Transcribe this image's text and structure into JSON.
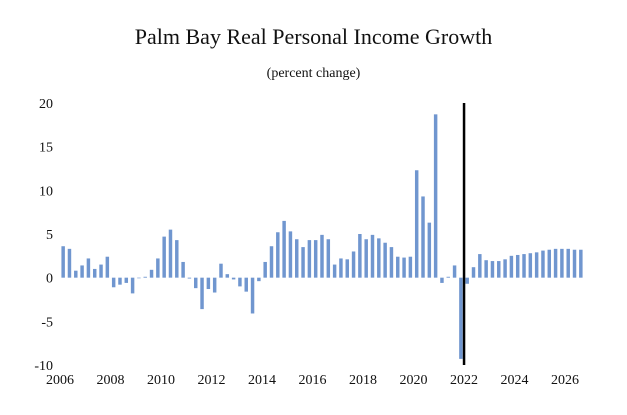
{
  "chart_data": {
    "type": "bar",
    "title": "Palm Bay Real Personal Income Growth",
    "subtitle": "(percent change)",
    "xlabel": "",
    "ylabel": "",
    "ylim": [
      -10,
      20
    ],
    "yticks": [
      -10,
      -5,
      0,
      5,
      10,
      15,
      20
    ],
    "xlim": [
      2006,
      2026.75
    ],
    "xticks": [
      2006,
      2008,
      2010,
      2012,
      2014,
      2016,
      2018,
      2020,
      2022,
      2024,
      2026
    ],
    "vline_at": 2022,
    "bar_color": "#7096cf",
    "vline_color": "#000000",
    "grid": false,
    "x": [
      2006.0,
      2006.25,
      2006.5,
      2006.75,
      2007.0,
      2007.25,
      2007.5,
      2007.75,
      2008.0,
      2008.25,
      2008.5,
      2008.75,
      2009.0,
      2009.25,
      2009.5,
      2009.75,
      2010.0,
      2010.25,
      2010.5,
      2010.75,
      2011.0,
      2011.25,
      2011.5,
      2011.75,
      2012.0,
      2012.25,
      2012.5,
      2012.75,
      2013.0,
      2013.25,
      2013.5,
      2013.75,
      2014.0,
      2014.25,
      2014.5,
      2014.75,
      2015.0,
      2015.25,
      2015.5,
      2015.75,
      2016.0,
      2016.25,
      2016.5,
      2016.75,
      2017.0,
      2017.25,
      2017.5,
      2017.75,
      2018.0,
      2018.25,
      2018.5,
      2018.75,
      2019.0,
      2019.25,
      2019.5,
      2019.75,
      2020.0,
      2020.25,
      2020.5,
      2020.75,
      2021.0,
      2021.25,
      2021.5,
      2021.75,
      2022.0,
      2022.25,
      2022.5,
      2022.75,
      2023.0,
      2023.25,
      2023.5,
      2023.75,
      2024.0,
      2024.25,
      2024.5,
      2024.75,
      2025.0,
      2025.25,
      2025.5,
      2025.75,
      2026.0,
      2026.25,
      2026.5
    ],
    "values": [
      3.6,
      3.3,
      0.8,
      1.4,
      2.2,
      1.0,
      1.5,
      2.4,
      -1.1,
      -0.8,
      -0.6,
      -1.8,
      0.0,
      0.1,
      0.9,
      2.2,
      4.7,
      5.5,
      4.3,
      1.8,
      -0.1,
      -1.2,
      -3.6,
      -1.3,
      -1.7,
      1.6,
      0.4,
      -0.2,
      -1.0,
      -1.6,
      -4.1,
      -0.4,
      1.8,
      3.6,
      5.2,
      6.5,
      5.3,
      4.4,
      3.5,
      4.3,
      4.3,
      4.9,
      4.4,
      1.5,
      2.2,
      2.1,
      3.0,
      5.0,
      4.4,
      4.9,
      4.5,
      4.0,
      3.5,
      2.4,
      2.3,
      2.4,
      12.3,
      9.3,
      6.3,
      18.7,
      -0.6,
      0.1,
      1.4,
      -9.3,
      -0.7,
      1.2,
      2.7,
      2.0,
      1.9,
      1.9,
      2.1,
      2.5,
      2.6,
      2.7,
      2.8,
      2.9,
      3.1,
      3.2,
      3.3,
      3.3,
      3.3,
      3.2,
      3.2
    ]
  }
}
